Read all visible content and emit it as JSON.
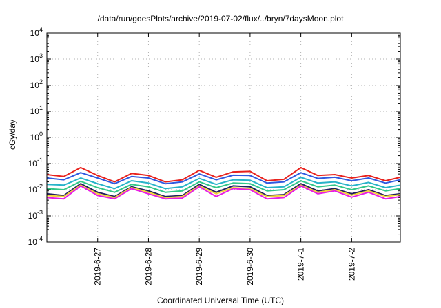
{
  "chart_data": {
    "type": "line",
    "title": "/data/run/goesPlots/archive/2019-07-02/flux/../bryn/7daysMoon.plot",
    "xlabel": "Coordinated Universal Time (UTC)",
    "ylabel": "cGy/day",
    "y_scale": "log",
    "ylim": [
      0.0001,
      10000
    ],
    "y_ticks": [
      {
        "exp": "-4",
        "value": 0.0001
      },
      {
        "exp": "-3",
        "value": 0.001
      },
      {
        "exp": "-2",
        "value": 0.01
      },
      {
        "exp": "-1",
        "value": 0.1
      },
      {
        "exp": "0",
        "value": 1
      },
      {
        "exp": "1",
        "value": 10
      },
      {
        "exp": "2",
        "value": 100
      },
      {
        "exp": "3",
        "value": 1000
      },
      {
        "exp": "4",
        "value": 10000
      }
    ],
    "xlim": [
      "2019-06-26 00:00",
      "2019-07-02 23:00"
    ],
    "x_ticks": [
      "2019-6-27",
      "2019-6-28",
      "2019-6-29",
      "2019-6-30",
      "2019-7-1",
      "2019-7-2"
    ],
    "grid": true,
    "legend": "none",
    "colors": {
      "red": "#e8221d",
      "blue": "#2f59e0",
      "cyan": "#27b3c9",
      "green": "#32c78a",
      "navy": "#1f1f5e",
      "yellow": "#f2d43a",
      "magenta": "#e71de3",
      "grid": "#b0b0b0"
    },
    "series": [
      {
        "color": "red",
        "x": [
          "2019-06-26 00:00",
          "2019-06-26 08:00",
          "2019-06-26 16:00",
          "2019-06-27 00:00",
          "2019-06-27 08:00",
          "2019-06-27 16:00",
          "2019-06-28 00:00",
          "2019-06-28 08:00",
          "2019-06-28 16:00",
          "2019-06-29 00:00",
          "2019-06-29 08:00",
          "2019-06-29 16:00",
          "2019-06-30 00:00",
          "2019-06-30 08:00",
          "2019-06-30 16:00",
          "2019-07-01 00:00",
          "2019-07-01 08:00",
          "2019-07-01 16:00",
          "2019-07-02 00:00",
          "2019-07-02 08:00",
          "2019-07-02 16:00",
          "2019-07-02 23:00"
        ],
        "y": [
          0.038,
          0.032,
          0.07,
          0.035,
          0.02,
          0.042,
          0.035,
          0.02,
          0.024,
          0.055,
          0.03,
          0.048,
          0.05,
          0.022,
          0.025,
          0.07,
          0.035,
          0.038,
          0.028,
          0.035,
          0.022,
          0.03
        ]
      },
      {
        "color": "blue",
        "x": [
          "2019-06-26 00:00",
          "2019-06-26 08:00",
          "2019-06-26 16:00",
          "2019-06-27 00:00",
          "2019-06-27 08:00",
          "2019-06-27 16:00",
          "2019-06-28 00:00",
          "2019-06-28 08:00",
          "2019-06-28 16:00",
          "2019-06-29 00:00",
          "2019-06-29 08:00",
          "2019-06-29 16:00",
          "2019-06-30 00:00",
          "2019-06-30 08:00",
          "2019-06-30 16:00",
          "2019-07-01 00:00",
          "2019-07-01 08:00",
          "2019-07-01 16:00",
          "2019-07-02 00:00",
          "2019-07-02 08:00",
          "2019-07-02 16:00",
          "2019-07-02 23:00"
        ],
        "y": [
          0.028,
          0.024,
          0.045,
          0.028,
          0.017,
          0.032,
          0.028,
          0.017,
          0.02,
          0.04,
          0.024,
          0.036,
          0.035,
          0.018,
          0.02,
          0.045,
          0.027,
          0.03,
          0.022,
          0.028,
          0.018,
          0.024
        ]
      },
      {
        "color": "cyan",
        "x": [
          "2019-06-26 00:00",
          "2019-06-26 08:00",
          "2019-06-26 16:00",
          "2019-06-27 00:00",
          "2019-06-27 08:00",
          "2019-06-27 16:00",
          "2019-06-28 00:00",
          "2019-06-28 08:00",
          "2019-06-28 16:00",
          "2019-06-29 00:00",
          "2019-06-29 08:00",
          "2019-06-29 16:00",
          "2019-06-30 00:00",
          "2019-06-30 08:00",
          "2019-06-30 16:00",
          "2019-07-01 00:00",
          "2019-07-01 08:00",
          "2019-07-01 16:00",
          "2019-07-02 00:00",
          "2019-07-02 08:00",
          "2019-07-02 16:00",
          "2019-07-02 23:00"
        ],
        "y": [
          0.016,
          0.015,
          0.028,
          0.017,
          0.011,
          0.022,
          0.018,
          0.011,
          0.013,
          0.027,
          0.016,
          0.024,
          0.023,
          0.012,
          0.013,
          0.03,
          0.018,
          0.02,
          0.014,
          0.019,
          0.012,
          0.015
        ]
      },
      {
        "color": "green",
        "x": [
          "2019-06-26 00:00",
          "2019-06-26 08:00",
          "2019-06-26 16:00",
          "2019-06-27 00:00",
          "2019-06-27 08:00",
          "2019-06-27 16:00",
          "2019-06-28 00:00",
          "2019-06-28 08:00",
          "2019-06-28 16:00",
          "2019-06-29 00:00",
          "2019-06-29 08:00",
          "2019-06-29 16:00",
          "2019-06-30 00:00",
          "2019-06-30 08:00",
          "2019-06-30 16:00",
          "2019-07-01 00:00",
          "2019-07-01 08:00",
          "2019-07-01 16:00",
          "2019-07-02 00:00",
          "2019-07-02 08:00",
          "2019-07-02 16:00",
          "2019-07-02 23:00"
        ],
        "y": [
          0.011,
          0.01,
          0.021,
          0.012,
          0.008,
          0.016,
          0.013,
          0.008,
          0.009,
          0.02,
          0.012,
          0.018,
          0.017,
          0.009,
          0.01,
          0.022,
          0.013,
          0.015,
          0.01,
          0.014,
          0.009,
          0.011
        ]
      },
      {
        "color": "navy",
        "x": [
          "2019-06-26 00:00",
          "2019-06-26 08:00",
          "2019-06-26 16:00",
          "2019-06-27 00:00",
          "2019-06-27 08:00",
          "2019-06-27 16:00",
          "2019-06-28 00:00",
          "2019-06-28 08:00",
          "2019-06-28 16:00",
          "2019-06-29 00:00",
          "2019-06-29 08:00",
          "2019-06-29 16:00",
          "2019-06-30 00:00",
          "2019-06-30 08:00",
          "2019-06-30 16:00",
          "2019-07-01 00:00",
          "2019-07-01 08:00",
          "2019-07-01 16:00",
          "2019-07-02 00:00",
          "2019-07-02 08:00",
          "2019-07-02 16:00",
          "2019-07-02 23:00"
        ],
        "y": [
          0.007,
          0.006,
          0.017,
          0.008,
          0.0055,
          0.013,
          0.009,
          0.0055,
          0.006,
          0.016,
          0.008,
          0.014,
          0.013,
          0.006,
          0.0065,
          0.017,
          0.009,
          0.011,
          0.007,
          0.01,
          0.006,
          0.007
        ]
      },
      {
        "color": "yellow",
        "x": [
          "2019-06-26 00:00",
          "2019-06-26 08:00",
          "2019-06-26 16:00",
          "2019-06-27 00:00",
          "2019-06-27 08:00",
          "2019-06-27 16:00",
          "2019-06-28 00:00",
          "2019-06-28 08:00",
          "2019-06-28 16:00",
          "2019-06-29 00:00",
          "2019-06-29 08:00",
          "2019-06-29 16:00",
          "2019-06-30 00:00",
          "2019-06-30 08:00",
          "2019-06-30 16:00",
          "2019-07-01 00:00",
          "2019-07-01 08:00",
          "2019-07-01 16:00",
          "2019-07-02 00:00",
          "2019-07-02 08:00",
          "2019-07-02 16:00",
          "2019-07-02 23:00"
        ],
        "y": [
          0.006,
          0.0055,
          0.015,
          0.007,
          0.005,
          0.012,
          0.008,
          0.005,
          0.0055,
          0.014,
          0.007,
          0.012,
          0.011,
          0.0055,
          0.006,
          0.015,
          0.008,
          0.01,
          0.0062,
          0.009,
          0.0055,
          0.0065
        ]
      },
      {
        "color": "magenta",
        "x": [
          "2019-06-26 00:00",
          "2019-06-26 08:00",
          "2019-06-26 16:00",
          "2019-06-27 00:00",
          "2019-06-27 08:00",
          "2019-06-27 16:00",
          "2019-06-28 00:00",
          "2019-06-28 08:00",
          "2019-06-28 16:00",
          "2019-06-29 00:00",
          "2019-06-29 08:00",
          "2019-06-29 16:00",
          "2019-06-30 00:00",
          "2019-06-30 08:00",
          "2019-06-30 16:00",
          "2019-07-01 00:00",
          "2019-07-01 08:00",
          "2019-07-01 16:00",
          "2019-07-02 00:00",
          "2019-07-02 08:00",
          "2019-07-02 16:00",
          "2019-07-02 23:00"
        ],
        "y": [
          0.005,
          0.0045,
          0.014,
          0.006,
          0.0045,
          0.011,
          0.007,
          0.0045,
          0.0048,
          0.013,
          0.0055,
          0.011,
          0.01,
          0.0045,
          0.005,
          0.014,
          0.007,
          0.009,
          0.0052,
          0.008,
          0.0045,
          0.0055
        ]
      }
    ]
  }
}
